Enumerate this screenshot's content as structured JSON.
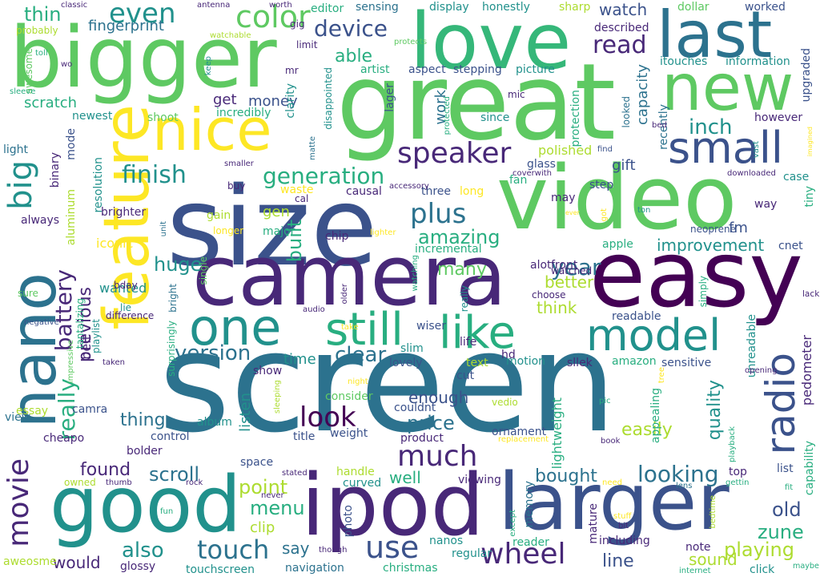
{
  "palette": {
    "p1": "#440154",
    "p2": "#3b528b",
    "p3": "#2c728e",
    "p4": "#21918c",
    "p5": "#28ae80",
    "p6": "#5ec962",
    "p7": "#addc30",
    "p8": "#fde725",
    "p9": "#482878",
    "p10": "#35b779"
  },
  "words": [
    {
      "text": "screen",
      "c": "p3"
    },
    {
      "text": "size",
      "c": "p2"
    },
    {
      "text": "great",
      "c": "p6"
    },
    {
      "text": "video",
      "c": "p6"
    },
    {
      "text": "camera",
      "c": "p9"
    },
    {
      "text": "easy",
      "c": "p1"
    },
    {
      "text": "bigger",
      "c": "p6"
    },
    {
      "text": "love",
      "c": "p10"
    },
    {
      "text": "nano",
      "c": "p3"
    },
    {
      "text": "feature",
      "c": "p8"
    },
    {
      "text": "ipod",
      "c": "p9"
    },
    {
      "text": "larger",
      "c": "p2"
    },
    {
      "text": "good",
      "c": "p4"
    },
    {
      "text": "last",
      "c": "p3"
    },
    {
      "text": "new",
      "c": "p6"
    },
    {
      "text": "nice",
      "c": "p8"
    },
    {
      "text": "one",
      "c": "p4"
    },
    {
      "text": "still",
      "c": "p5"
    },
    {
      "text": "like",
      "c": "p5"
    },
    {
      "text": "model",
      "c": "p4"
    },
    {
      "text": "big",
      "c": "p4"
    },
    {
      "text": "small",
      "c": "p2"
    },
    {
      "text": "radio",
      "c": "p2"
    },
    {
      "text": "movie",
      "c": "p9"
    },
    {
      "text": "speaker",
      "c": "p9"
    },
    {
      "text": "color",
      "c": "p6"
    },
    {
      "text": "much",
      "c": "p9"
    },
    {
      "text": "use",
      "c": "p2"
    },
    {
      "text": "touch",
      "c": "p3"
    },
    {
      "text": "wheel",
      "c": "p9"
    },
    {
      "text": "even",
      "c": "p4"
    },
    {
      "text": "finish",
      "c": "p4"
    },
    {
      "text": "generation",
      "c": "p5"
    },
    {
      "text": "plus",
      "c": "p3"
    },
    {
      "text": "battery",
      "c": "p9"
    },
    {
      "text": "look",
      "c": "p1"
    },
    {
      "text": "version",
      "c": "p3"
    },
    {
      "text": "clear",
      "c": "p3"
    },
    {
      "text": "year",
      "c": "p3"
    },
    {
      "text": "device",
      "c": "p2"
    },
    {
      "text": "read",
      "c": "p9"
    },
    {
      "text": "inch",
      "c": "p4"
    },
    {
      "text": "really",
      "c": "p5"
    },
    {
      "text": "amazing",
      "c": "p5"
    },
    {
      "text": "improvement",
      "c": "p4"
    },
    {
      "text": "scroll",
      "c": "p3"
    },
    {
      "text": "looking",
      "c": "p3"
    },
    {
      "text": "playing",
      "c": "p7"
    },
    {
      "text": "also",
      "c": "p4"
    },
    {
      "text": "menu",
      "c": "p5"
    },
    {
      "text": "point",
      "c": "p7"
    },
    {
      "text": "zune",
      "c": "p5"
    },
    {
      "text": "old",
      "c": "p2"
    },
    {
      "text": "price",
      "c": "p3"
    },
    {
      "text": "enough",
      "c": "p2"
    },
    {
      "text": "found",
      "c": "p9"
    },
    {
      "text": "thing",
      "c": "p3"
    },
    {
      "text": "built",
      "c": "p5"
    },
    {
      "text": "previous",
      "c": "p9"
    },
    {
      "text": "many",
      "c": "p6"
    },
    {
      "text": "huge",
      "c": "p4"
    },
    {
      "text": "better",
      "c": "p7"
    },
    {
      "text": "think",
      "c": "p7"
    },
    {
      "text": "able",
      "c": "p5"
    },
    {
      "text": "thin",
      "c": "p5"
    },
    {
      "text": "watch",
      "c": "p2"
    },
    {
      "text": "quality",
      "c": "p4"
    },
    {
      "text": "easily",
      "c": "p7"
    },
    {
      "text": "line",
      "c": "p2"
    },
    {
      "text": "would",
      "c": "p9"
    },
    {
      "text": "say",
      "c": "p3"
    },
    {
      "text": "well",
      "c": "p5"
    },
    {
      "text": "bought",
      "c": "p3"
    },
    {
      "text": "sound",
      "c": "p7"
    },
    {
      "text": "listen",
      "c": "p4"
    },
    {
      "text": "scratch",
      "c": "p5"
    },
    {
      "text": "work",
      "c": "p3"
    },
    {
      "text": "gift",
      "c": "p2"
    },
    {
      "text": "time",
      "c": "p4"
    },
    {
      "text": "money",
      "c": "p2"
    },
    {
      "text": "fingerprint",
      "c": "p3"
    },
    {
      "text": "get",
      "c": "p9"
    },
    {
      "text": "fm",
      "c": "p2"
    },
    {
      "text": "gen",
      "c": "p7"
    },
    {
      "text": "capacity",
      "c": "p3"
    },
    {
      "text": "belt",
      "c": "p9"
    },
    {
      "text": "lightweight",
      "c": "p5"
    },
    {
      "text": "clip",
      "c": "p7"
    },
    {
      "text": "pedometer",
      "c": "p9"
    },
    {
      "text": "polished",
      "c": "p7"
    },
    {
      "text": "wanted",
      "c": "p4"
    },
    {
      "text": "iconic",
      "c": "p8"
    },
    {
      "text": "sensing",
      "c": "p3"
    },
    {
      "text": "display",
      "c": "p4"
    },
    {
      "text": "honestly",
      "c": "p4"
    },
    {
      "text": "editor",
      "c": "p5"
    },
    {
      "text": "artist",
      "c": "p5"
    },
    {
      "text": "aspect",
      "c": "p2"
    },
    {
      "text": "stepping",
      "c": "p2"
    },
    {
      "text": "picture",
      "c": "p4"
    },
    {
      "text": "itouches",
      "c": "p4"
    },
    {
      "text": "information",
      "c": "p4"
    },
    {
      "text": "described",
      "c": "p9"
    },
    {
      "text": "worked",
      "c": "p2"
    },
    {
      "text": "dollar",
      "c": "p6"
    },
    {
      "text": "sharp",
      "c": "p7"
    },
    {
      "text": "however",
      "c": "p9"
    },
    {
      "text": "upgraded",
      "c": "p2"
    },
    {
      "text": "incredibly",
      "c": "p5"
    },
    {
      "text": "newest",
      "c": "p4"
    },
    {
      "text": "shoot",
      "c": "p6"
    },
    {
      "text": "light",
      "c": "p3"
    },
    {
      "text": "mode",
      "c": "p2"
    },
    {
      "text": "binary",
      "c": "p9"
    },
    {
      "text": "aluminum",
      "c": "p7"
    },
    {
      "text": "resolution",
      "c": "p4"
    },
    {
      "text": "always",
      "c": "p9"
    },
    {
      "text": "brighter",
      "c": "p9"
    },
    {
      "text": "gain",
      "c": "p7"
    },
    {
      "text": "major",
      "c": "p5"
    },
    {
      "text": "chip",
      "c": "p9"
    },
    {
      "text": "incremental",
      "c": "p5"
    },
    {
      "text": "three",
      "c": "p2"
    },
    {
      "text": "long",
      "c": "p8"
    },
    {
      "text": "step",
      "c": "p2"
    },
    {
      "text": "fan",
      "c": "p5"
    },
    {
      "text": "glass",
      "c": "p2"
    },
    {
      "text": "may",
      "c": "p9"
    },
    {
      "text": "apple",
      "c": "p5"
    },
    {
      "text": "cnet",
      "c": "p2"
    },
    {
      "text": "way",
      "c": "p9"
    },
    {
      "text": "case",
      "c": "p4"
    },
    {
      "text": "tiny",
      "c": "p5"
    },
    {
      "text": "alot",
      "c": "p9"
    },
    {
      "text": "front",
      "c": "p9"
    },
    {
      "text": "watched",
      "c": "p9"
    },
    {
      "text": "readable",
      "c": "p2"
    },
    {
      "text": "unreadable",
      "c": "p4"
    },
    {
      "text": "lack",
      "c": "p9"
    },
    {
      "text": "sensitive",
      "c": "p2"
    },
    {
      "text": "amazon",
      "c": "p5"
    },
    {
      "text": "sllek",
      "c": "p9"
    },
    {
      "text": "life",
      "c": "p9"
    },
    {
      "text": "hd",
      "c": "p9"
    },
    {
      "text": "motion",
      "c": "p4"
    },
    {
      "text": "text",
      "c": "p7"
    },
    {
      "text": "lovely",
      "c": "p2"
    },
    {
      "text": "show",
      "c": "p9"
    },
    {
      "text": "cut",
      "c": "p2"
    },
    {
      "text": "slim",
      "c": "p4"
    },
    {
      "text": "wiser",
      "c": "p2"
    },
    {
      "text": "consider",
      "c": "p6"
    },
    {
      "text": "couldnt",
      "c": "p2"
    },
    {
      "text": "album",
      "c": "p4"
    },
    {
      "text": "essay",
      "c": "p7"
    },
    {
      "text": "view",
      "c": "p3"
    },
    {
      "text": "control",
      "c": "p2"
    },
    {
      "text": "bolder",
      "c": "p9"
    },
    {
      "text": "cheapo",
      "c": "p9"
    },
    {
      "text": "camra",
      "c": "p2"
    },
    {
      "text": "title",
      "c": "p2"
    },
    {
      "text": "weight",
      "c": "p2"
    },
    {
      "text": "product",
      "c": "p9"
    },
    {
      "text": "ornament",
      "c": "p2"
    },
    {
      "text": "appealing",
      "c": "p5"
    },
    {
      "text": "capability",
      "c": "p5"
    },
    {
      "text": "list",
      "c": "p2"
    },
    {
      "text": "top",
      "c": "p9"
    },
    {
      "text": "space",
      "c": "p2"
    },
    {
      "text": "handle",
      "c": "p7"
    },
    {
      "text": "curved",
      "c": "p4"
    },
    {
      "text": "viewing",
      "c": "p9"
    },
    {
      "text": "memory",
      "c": "p3"
    },
    {
      "text": "mature",
      "c": "p9"
    },
    {
      "text": "photo",
      "c": "p2"
    },
    {
      "text": "including",
      "c": "p9"
    },
    {
      "text": "note",
      "c": "p9"
    },
    {
      "text": "reader",
      "c": "p5"
    },
    {
      "text": "regular",
      "c": "p4"
    },
    {
      "text": "nanos",
      "c": "p4"
    },
    {
      "text": "navigation",
      "c": "p3"
    },
    {
      "text": "christmas",
      "c": "p5"
    },
    {
      "text": "touchscreen",
      "c": "p4"
    },
    {
      "text": "glossy",
      "c": "p9"
    },
    {
      "text": "aweosme",
      "c": "p7"
    },
    {
      "text": "click",
      "c": "p4"
    },
    {
      "text": "maybe",
      "c": "p5"
    },
    {
      "text": "internet",
      "c": "p5"
    },
    {
      "text": "probably",
      "c": "p7"
    },
    {
      "text": "awesome",
      "c": "p6"
    },
    {
      "text": "sleeve",
      "c": "p5"
    },
    {
      "text": "classic",
      "c": "p9"
    },
    {
      "text": "antenna",
      "c": "p9"
    },
    {
      "text": "worth",
      "c": "p9"
    },
    {
      "text": "toll",
      "c": "p5"
    },
    {
      "text": "wo",
      "c": "p9"
    },
    {
      "text": "watchable",
      "c": "p7"
    },
    {
      "text": "gig",
      "c": "p9"
    },
    {
      "text": "mr",
      "c": "p9"
    },
    {
      "text": "clarity",
      "c": "p4"
    },
    {
      "text": "keep",
      "c": "p4"
    },
    {
      "text": "protects",
      "c": "p6"
    },
    {
      "text": "limit",
      "c": "p9"
    },
    {
      "text": "disappointed",
      "c": "p4"
    },
    {
      "text": "mic",
      "c": "p9"
    },
    {
      "text": "lager",
      "c": "p2"
    },
    {
      "text": "protected",
      "c": "p5"
    },
    {
      "text": "since",
      "c": "p4"
    },
    {
      "text": "protection",
      "c": "p5"
    },
    {
      "text": "looked",
      "c": "p3"
    },
    {
      "text": "recently",
      "c": "p3"
    },
    {
      "text": "bed",
      "c": "p9"
    },
    {
      "text": "matte",
      "c": "p3"
    },
    {
      "text": "smaller",
      "c": "p9"
    },
    {
      "text": "buy",
      "c": "p9"
    },
    {
      "text": "waste",
      "c": "p8"
    },
    {
      "text": "causal",
      "c": "p9"
    },
    {
      "text": "accessory",
      "c": "p9"
    },
    {
      "text": "cal",
      "c": "p9"
    },
    {
      "text": "coverwith",
      "c": "p9"
    },
    {
      "text": "find",
      "c": "p2"
    },
    {
      "text": "vast",
      "c": "p4"
    },
    {
      "text": "downloaded",
      "c": "p9"
    },
    {
      "text": "imagined",
      "c": "p8"
    },
    {
      "text": "unit",
      "c": "p3"
    },
    {
      "text": "longer",
      "c": "p8"
    },
    {
      "text": "lighter",
      "c": "p8"
    },
    {
      "text": "ever",
      "c": "p8"
    },
    {
      "text": "got",
      "c": "p8"
    },
    {
      "text": "ton",
      "c": "p4"
    },
    {
      "text": "neoprene",
      "c": "p2"
    },
    {
      "text": "single",
      "c": "p6"
    },
    {
      "text": "bday",
      "c": "p9"
    },
    {
      "text": "tantalizing",
      "c": "p5"
    },
    {
      "text": "sure",
      "c": "p6"
    },
    {
      "text": "lie",
      "c": "p4"
    },
    {
      "text": "bright",
      "c": "p3"
    },
    {
      "text": "playlist",
      "c": "p4"
    },
    {
      "text": "negative",
      "c": "p2"
    },
    {
      "text": "difference",
      "c": "p9"
    },
    {
      "text": "impressive",
      "c": "p6"
    },
    {
      "text": "surprisingly",
      "c": "p5"
    },
    {
      "text": "taken",
      "c": "p9"
    },
    {
      "text": "audio",
      "c": "p9"
    },
    {
      "text": "older",
      "c": "p9"
    },
    {
      "text": "watching",
      "c": "p5"
    },
    {
      "text": "take",
      "c": "p8"
    },
    {
      "text": "really",
      "c": "p4"
    },
    {
      "text": "choose",
      "c": "p9"
    },
    {
      "text": "simply",
      "c": "p5"
    },
    {
      "text": "opening",
      "c": "p9"
    },
    {
      "text": "night",
      "c": "p8"
    },
    {
      "text": "tree",
      "c": "p8"
    },
    {
      "text": "vedio",
      "c": "p7"
    },
    {
      "text": "pic",
      "c": "p5"
    },
    {
      "text": "playback",
      "c": "p5"
    },
    {
      "text": "sleeping",
      "c": "p7"
    },
    {
      "text": "replacement",
      "c": "p8"
    },
    {
      "text": "book",
      "c": "p9"
    },
    {
      "text": "owned",
      "c": "p7"
    },
    {
      "text": "thumb",
      "c": "p9"
    },
    {
      "text": "rock",
      "c": "p9"
    },
    {
      "text": "stated",
      "c": "p9"
    },
    {
      "text": "need",
      "c": "p8"
    },
    {
      "text": "lens",
      "c": "p3"
    },
    {
      "text": "gettin",
      "c": "p5"
    },
    {
      "text": "fit",
      "c": "p5"
    },
    {
      "text": "never",
      "c": "p9"
    },
    {
      "text": "fun",
      "c": "p5"
    },
    {
      "text": "except",
      "c": "p5"
    },
    {
      "text": "stuff",
      "c": "p8"
    },
    {
      "text": "bit",
      "c": "p9"
    },
    {
      "text": "bedtime",
      "c": "p7"
    },
    {
      "text": "though",
      "c": "p9"
    }
  ]
}
